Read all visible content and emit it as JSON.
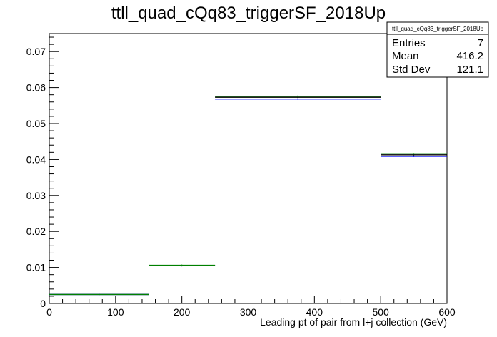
{
  "chart_data": {
    "type": "histogram",
    "title": "ttll_quad_cQq83_triggerSF_2018Up",
    "xlabel": "Leading pt of pair from l+j collection (GeV)",
    "ylabel": "",
    "xlim": [
      0,
      600
    ],
    "ylim": [
      0,
      0.075
    ],
    "x_ticks": [
      "0",
      "100",
      "200",
      "300",
      "400",
      "500",
      "600"
    ],
    "y_ticks": [
      "0",
      "0.01",
      "0.02",
      "0.03",
      "0.04",
      "0.05",
      "0.06",
      "0.07"
    ],
    "bin_edges": [
      0,
      150,
      250,
      500,
      600
    ],
    "series": [
      {
        "color": "#000000",
        "values": [
          0.0025,
          0.0105,
          0.0573,
          0.0413
        ]
      },
      {
        "color": "#0000ff",
        "values": [
          0.0025,
          0.0105,
          0.0568,
          0.0409
        ]
      },
      {
        "color": "#008000",
        "values": [
          0.0025,
          0.0106,
          0.0576,
          0.0416
        ]
      }
    ],
    "stats": {
      "name": "ttll_quad_cQq83_triggerSF_2018Up",
      "entries_label": "Entries",
      "entries_value": "7",
      "mean_label": "Mean",
      "mean_value": "416.2",
      "stddev_label": "Std Dev",
      "stddev_value": "121.1"
    },
    "grid": false,
    "legend": "top-right"
  }
}
